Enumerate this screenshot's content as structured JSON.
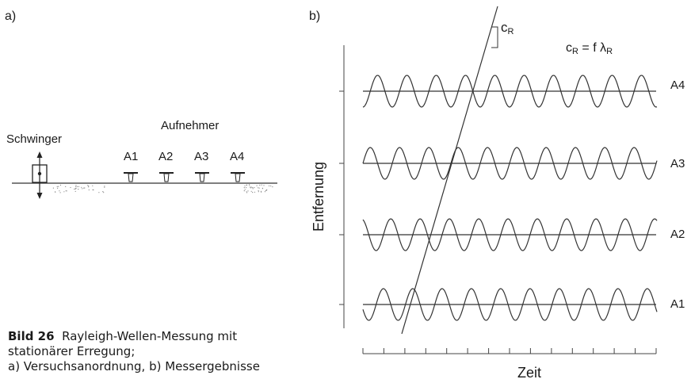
{
  "panel_a": {
    "label": "a)",
    "source_label": "Schwinger",
    "sensor_group_label": "Aufnehmer",
    "sensors": [
      "A1",
      "A2",
      "A3",
      "A4"
    ]
  },
  "panel_b": {
    "label": "b)",
    "slope_label": "c",
    "slope_label_sub": "R",
    "formula_lhs": "c",
    "formula_lhs_sub": "R",
    "formula_eq": " = f λ",
    "formula_rhs_sub": "R",
    "ylabel": "Entfernung",
    "xlabel": "Zeit",
    "traces": [
      "A4",
      "A3",
      "A2",
      "A1"
    ]
  },
  "caption": {
    "number": "Bild 26",
    "line1": "Rayleigh-Wellen-Messung mit",
    "line2": "stationärer Erregung;",
    "line3": "a) Versuchsanordnung, b) Messergebnisse"
  },
  "colors": {
    "ink": "#1a1a1a",
    "line": "#444444"
  }
}
